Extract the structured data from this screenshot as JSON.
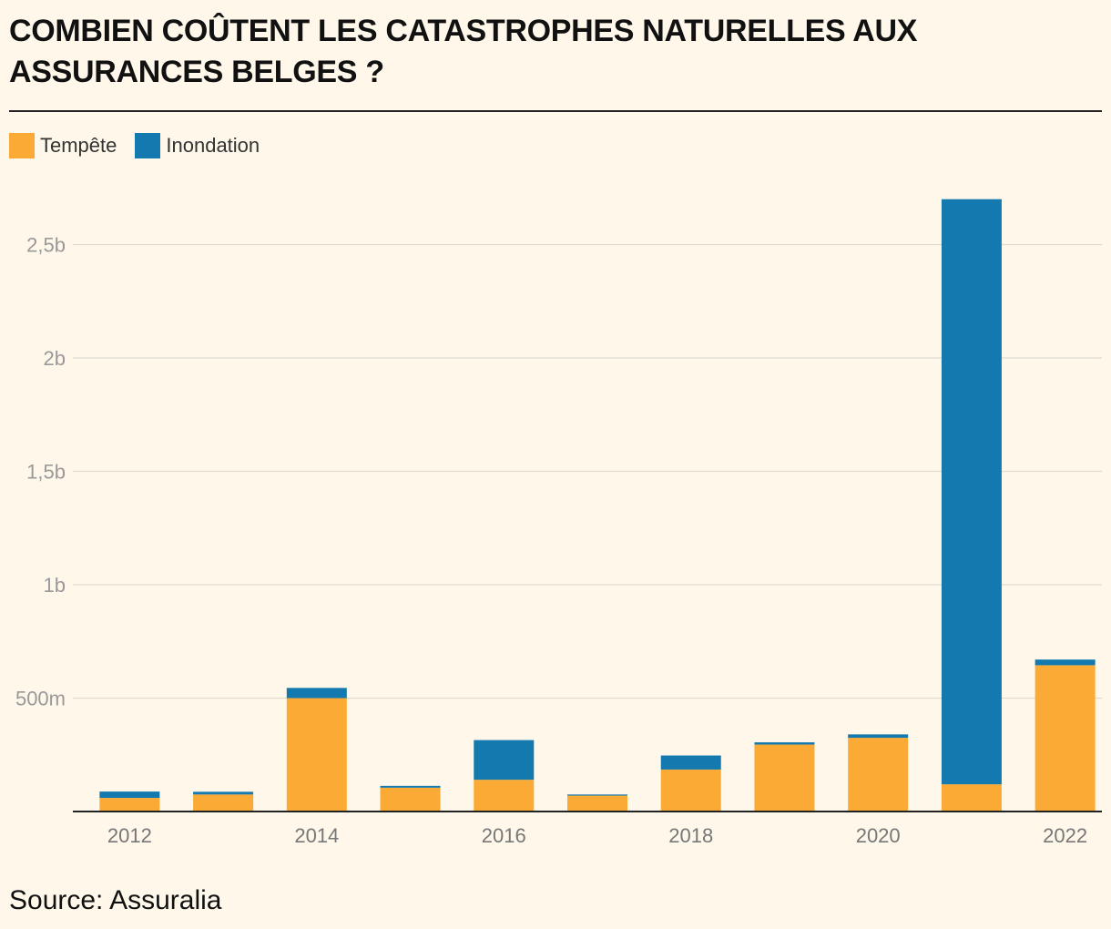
{
  "title": "COMBIEN COÛTENT LES CATASTROPHES NATURELLES AUX ASSURANCES BELGES ?",
  "source": "Source: Assuralia",
  "colors": {
    "tempete": "#fbab35",
    "inondation": "#1379ae",
    "background": "#fff7ea",
    "grid": "#dedbd3",
    "tick_text": "#999999"
  },
  "legend": [
    {
      "label": "Tempête",
      "color": "#fbab35"
    },
    {
      "label": "Inondation",
      "color": "#1379ae"
    }
  ],
  "chart_data": {
    "type": "bar",
    "stacked": true,
    "categories": [
      "2012",
      "2013",
      "2014",
      "2015",
      "2016",
      "2017",
      "2018",
      "2019",
      "2020",
      "2021",
      "2022"
    ],
    "x_tick_labels": [
      "2012",
      "",
      "2014",
      "",
      "2016",
      "",
      "2018",
      "",
      "2020",
      "",
      "2022"
    ],
    "series": [
      {
        "name": "Tempête",
        "values": [
          60000000,
          75000000,
          500000000,
          105000000,
          140000000,
          70000000,
          185000000,
          295000000,
          325000000,
          120000000,
          645000000
        ]
      },
      {
        "name": "Inondation",
        "values": [
          28000000,
          12000000,
          45000000,
          8000000,
          175000000,
          5000000,
          62000000,
          10000000,
          15000000,
          2580000000,
          25000000
        ]
      }
    ],
    "y_ticks": [
      500000000,
      1000000000,
      1500000000,
      2000000000,
      2500000000
    ],
    "y_tick_labels": [
      "500m",
      "1b",
      "1,5b",
      "2b",
      "2,5b"
    ],
    "ylim": [
      0,
      2700000000
    ],
    "xlabel": "",
    "ylabel": "",
    "legend_position": "top-left",
    "grid": true
  }
}
